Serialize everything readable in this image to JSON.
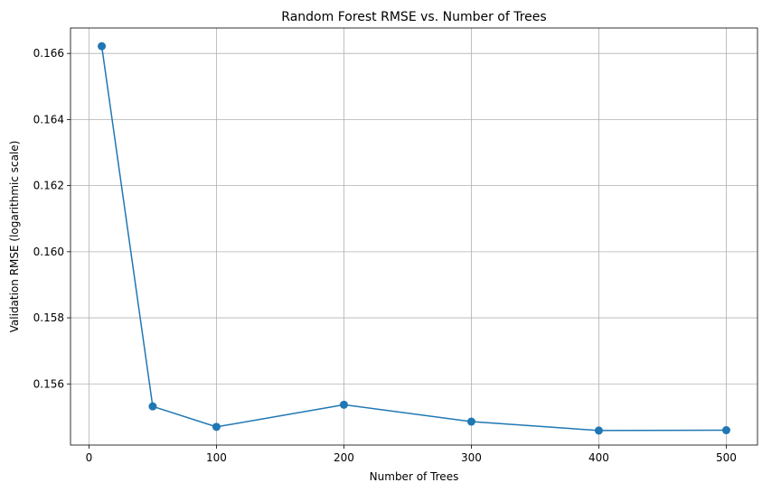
{
  "chart_data": {
    "type": "line",
    "title": "Random Forest RMSE vs. Number of Trees",
    "xlabel": "Number of Trees",
    "ylabel": "Validation RMSE (logarithmic scale)",
    "x": [
      10,
      50,
      100,
      200,
      300,
      400,
      500
    ],
    "series": [
      {
        "values": [
          0.16622,
          0.15532,
          0.1547,
          0.15537,
          0.15486,
          0.15459,
          0.1546
        ]
      }
    ],
    "xlim": [
      -14.5,
      524.5
    ],
    "ylim": [
      0.15415,
      0.16677
    ],
    "xticks": [
      0,
      100,
      200,
      300,
      400,
      500
    ],
    "xtick_labels": [
      "0",
      "100",
      "200",
      "300",
      "400",
      "500"
    ],
    "yticks": [
      0.156,
      0.158,
      0.16,
      0.162,
      0.164,
      0.166
    ],
    "ytick_labels": [
      "0.156",
      "0.158",
      "0.160",
      "0.162",
      "0.164",
      "0.166"
    ],
    "grid": true,
    "line_color": "#1f77b4",
    "marker": "circle"
  }
}
